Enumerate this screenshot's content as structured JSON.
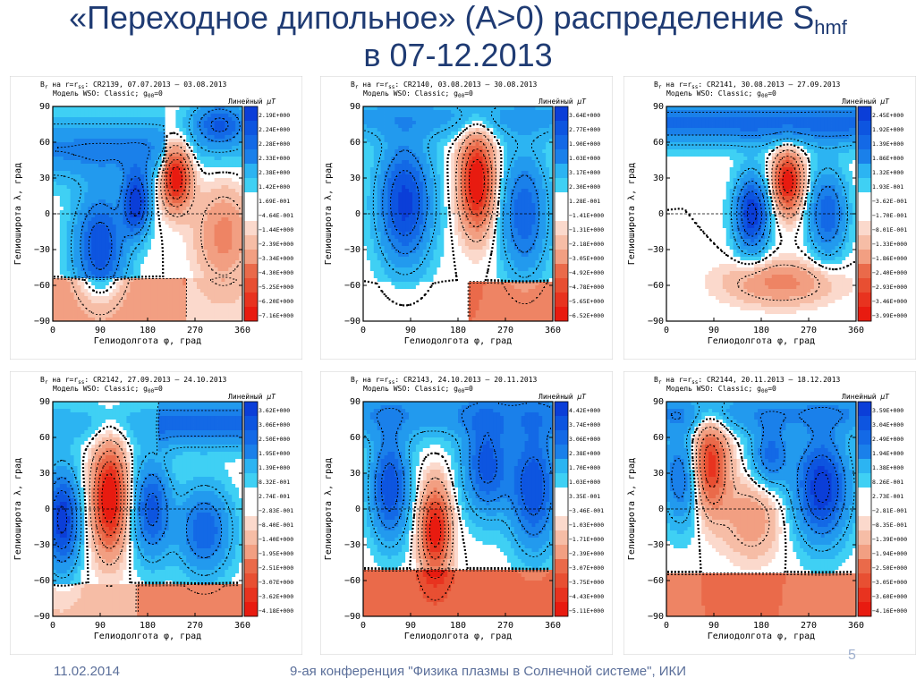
{
  "slide": {
    "title_line1_main": "«Переходное дипольное» (A>0) распределение S",
    "title_line1_sub": "hmf",
    "title_line2": "в 07-12.2013",
    "footer_date": "11.02.2014",
    "footer_conference": "9-ая конференция \"Физика плазмы в Солнечной системе\", ИКИ",
    "page_number": "5"
  },
  "common": {
    "header_prefix": "B",
    "header_r": "r",
    "header_mid": " на r=r",
    "header_ss": "ss",
    "header_after": ":",
    "model_line": "Модель WSO: Classic; g",
    "model_sub": "00",
    "model_tail": "=0",
    "unit_label": "Линейный",
    "unit_mu": "μT",
    "x_axis_label": "Гелиодолгота φ, град",
    "y_axis_label": "Гелиоширота λ, град",
    "x_ticks": [
      "0",
      "90",
      "180",
      "270",
      "360"
    ],
    "y_ticks": [
      "90",
      "60",
      "30",
      "0",
      "−30",
      "−60",
      "−90"
    ]
  },
  "maps": [
    {
      "header_cr": "CR2139, 07.07.2013 – 03.08.2013",
      "colorbar": [
        "2.19E+000",
        "2.24E+000",
        "2.28E+000",
        "2.33E+000",
        "2.38E+000",
        "1.42E+000",
        "1.69E-001",
        "−4.64E-001",
        "−1.44E+000",
        "−2.39E+000",
        "−3.34E+000",
        "−4.30E+000",
        "−5.25E+000",
        "−6.20E+000",
        "−7.16E+000"
      ]
    },
    {
      "header_cr": "CR2140, 03.08.2013 – 30.08.2013",
      "colorbar": [
        "3.64E+000",
        "2.77E+000",
        "1.90E+000",
        "1.03E+000",
        "3.17E+000",
        "2.30E+000",
        "1.28E-001",
        "−1.41E+000",
        "−1.31E+000",
        "−2.18E+000",
        "−3.05E+000",
        "−4.92E+000",
        "−4.78E+000",
        "−5.65E+000",
        "−6.52E+000"
      ]
    },
    {
      "header_cr": "CR2141, 30.08.2013 – 27.09.2013",
      "colorbar": [
        "2.45E+000",
        "1.92E+000",
        "1.39E+000",
        "1.86E+000",
        "1.32E+000",
        "1.93E-001",
        "−3.62E-001",
        "−1.70E-001",
        "−8.01E-001",
        "−1.33E+000",
        "−1.86E+000",
        "−2.40E+000",
        "−2.93E+000",
        "−3.46E+000",
        "−3.99E+000"
      ]
    },
    {
      "header_cr": "CR2142, 27.09.2013 – 24.10.2013",
      "colorbar": [
        "3.62E+000",
        "3.06E+000",
        "2.50E+000",
        "1.95E+000",
        "1.39E+000",
        "8.32E-001",
        "2.74E-001",
        "−2.83E-001",
        "−8.40E-001",
        "−1.40E+000",
        "−1.95E+000",
        "−2.51E+000",
        "−3.07E+000",
        "−3.62E+000",
        "−4.18E+000"
      ]
    },
    {
      "header_cr": "CR2143, 24.10.2013 – 20.11.2013",
      "colorbar": [
        "4.42E+000",
        "3.74E+000",
        "3.06E+000",
        "2.38E+000",
        "1.70E+000",
        "1.03E+000",
        "3.35E-001",
        "−3.46E-001",
        "−1.03E+000",
        "−1.71E+000",
        "−2.39E+000",
        "−3.07E+000",
        "−3.75E+000",
        "−4.43E+000",
        "−5.11E+000"
      ]
    },
    {
      "header_cr": "CR2144, 20.11.2013 – 18.12.2013",
      "colorbar": [
        "3.59E+000",
        "3.04E+000",
        "2.49E+000",
        "1.94E+000",
        "1.38E+000",
        "8.26E-001",
        "2.73E-001",
        "−2.81E-001",
        "−8.35E-001",
        "−1.39E+000",
        "−1.94E+000",
        "−2.50E+000",
        "−3.05E+000",
        "−3.60E+000",
        "−4.16E+000"
      ]
    }
  ],
  "colors": {
    "title": "#1f3b73",
    "footer": "#5b6f9a",
    "positive_ramp": [
      "#0b3ed8",
      "#0d55e0",
      "#1369e6",
      "#1a80ea",
      "#229aee",
      "#2cb4f2",
      "#3fd0f4"
    ],
    "neutral": "#ffffff",
    "negative_ramp": [
      "#fbd9cc",
      "#f6bda6",
      "#f29f82",
      "#ee8464",
      "#ea6a4a",
      "#e84f32",
      "#e8331f",
      "#e81b10"
    ]
  }
}
